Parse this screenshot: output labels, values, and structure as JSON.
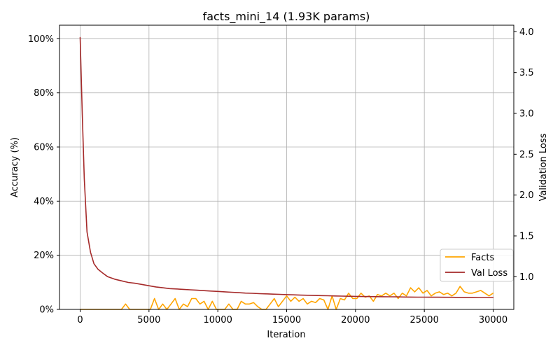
{
  "chart_data": {
    "type": "line",
    "title": "facts_mini_14 (1.93K params)",
    "xlabel": "Iteration",
    "ylabel_left": "Accuracy (%)",
    "ylabel_right": "Validation Loss",
    "xlim": [
      -1500,
      31500
    ],
    "ylim_left": [
      0,
      1.05
    ],
    "ylim_right": [
      0.6,
      4.08
    ],
    "x_ticks": [
      0,
      5000,
      10000,
      15000,
      20000,
      25000,
      30000
    ],
    "x_tick_labels": [
      "0",
      "5000",
      "10000",
      "15000",
      "20000",
      "25000",
      "30000"
    ],
    "y_left_ticks": [
      0,
      0.2,
      0.4,
      0.6,
      0.8,
      1.0
    ],
    "y_left_tick_labels": [
      "0%",
      "20%",
      "40%",
      "60%",
      "80%",
      "100%"
    ],
    "y_right_ticks": [
      1.0,
      1.5,
      2.0,
      2.5,
      3.0,
      3.5,
      4.0
    ],
    "y_right_tick_labels": [
      "1.0",
      "1.5",
      "2.0",
      "2.5",
      "3.0",
      "3.5",
      "4.0"
    ],
    "grid": true,
    "legend_position": "lower-right",
    "series": [
      {
        "name": "Facts",
        "color": "#FFA500",
        "axis": "left",
        "x": [
          0,
          300,
          600,
          900,
          1200,
          1500,
          1800,
          2100,
          2400,
          2700,
          3000,
          3300,
          3600,
          3900,
          4200,
          4500,
          4800,
          5100,
          5400,
          5700,
          6000,
          6300,
          6600,
          6900,
          7200,
          7500,
          7800,
          8100,
          8400,
          8700,
          9000,
          9300,
          9600,
          9900,
          10200,
          10500,
          10800,
          11100,
          11400,
          11700,
          12000,
          12300,
          12600,
          12900,
          13200,
          13500,
          13800,
          14100,
          14400,
          14700,
          15000,
          15300,
          15600,
          15900,
          16200,
          16500,
          16800,
          17100,
          17400,
          17700,
          18000,
          18300,
          18600,
          18900,
          19200,
          19500,
          19800,
          20100,
          20400,
          20700,
          21000,
          21300,
          21600,
          21900,
          22200,
          22500,
          22800,
          23100,
          23400,
          23700,
          24000,
          24300,
          24600,
          24900,
          25200,
          25500,
          25800,
          26100,
          26400,
          26700,
          27000,
          27300,
          27600,
          27900,
          28200,
          28500,
          28800,
          29100,
          29400,
          29700,
          30000
        ],
        "y": [
          0,
          0,
          0,
          0,
          0,
          0,
          0,
          0,
          0,
          0,
          0,
          0.02,
          0,
          0,
          0,
          0,
          0,
          0,
          0.04,
          0,
          0.02,
          0,
          0.02,
          0.04,
          0,
          0.02,
          0.01,
          0.04,
          0.04,
          0.02,
          0.03,
          0,
          0.03,
          0,
          0,
          0,
          0.02,
          0,
          0,
          0.03,
          0.02,
          0.02,
          0.025,
          0.01,
          0,
          0,
          0.02,
          0.04,
          0.01,
          0.03,
          0.05,
          0.03,
          0.045,
          0.03,
          0.04,
          0.02,
          0.03,
          0.025,
          0.04,
          0.035,
          0,
          0.05,
          0,
          0.04,
          0.035,
          0.06,
          0.04,
          0.04,
          0.06,
          0.045,
          0.05,
          0.03,
          0.055,
          0.05,
          0.06,
          0.05,
          0.06,
          0.04,
          0.06,
          0.05,
          0.08,
          0.065,
          0.08,
          0.06,
          0.07,
          0.05,
          0.06,
          0.065,
          0.055,
          0.06,
          0.05,
          0.06,
          0.085,
          0.065,
          0.06,
          0.06,
          0.065,
          0.07,
          0.06,
          0.05,
          0.06
        ],
        "note": ""
      },
      {
        "name": "Val Loss",
        "color": "#A52A2A",
        "axis": "right",
        "x": [
          0,
          150,
          300,
          500,
          750,
          1000,
          1300,
          1600,
          2000,
          2500,
          3000,
          3500,
          4000,
          4500,
          5000,
          5500,
          6000,
          6500,
          7000,
          7500,
          8000,
          8500,
          9000,
          9500,
          10000,
          10500,
          11000,
          11500,
          12000,
          12500,
          13000,
          13500,
          14000,
          14500,
          15000,
          15500,
          16000,
          16500,
          17000,
          17500,
          18000,
          18500,
          19000,
          19500,
          20000,
          20500,
          21000,
          21500,
          22000,
          22500,
          23000,
          23500,
          24000,
          24500,
          25000,
          25500,
          26000,
          26500,
          27000,
          27500,
          28000,
          28500,
          29000,
          29500,
          30000
        ],
        "y": [
          3.93,
          3.0,
          2.2,
          1.55,
          1.3,
          1.16,
          1.09,
          1.05,
          1.0,
          0.97,
          0.95,
          0.93,
          0.92,
          0.905,
          0.89,
          0.875,
          0.865,
          0.855,
          0.85,
          0.845,
          0.84,
          0.835,
          0.83,
          0.825,
          0.82,
          0.815,
          0.81,
          0.805,
          0.8,
          0.797,
          0.793,
          0.79,
          0.787,
          0.784,
          0.781,
          0.778,
          0.775,
          0.773,
          0.771,
          0.769,
          0.767,
          0.765,
          0.763,
          0.761,
          0.759,
          0.758,
          0.757,
          0.756,
          0.755,
          0.754,
          0.753,
          0.752,
          0.751,
          0.75,
          0.75,
          0.749,
          0.749,
          0.748,
          0.748,
          0.747,
          0.747,
          0.747,
          0.746,
          0.746,
          0.746
        ]
      }
    ]
  }
}
